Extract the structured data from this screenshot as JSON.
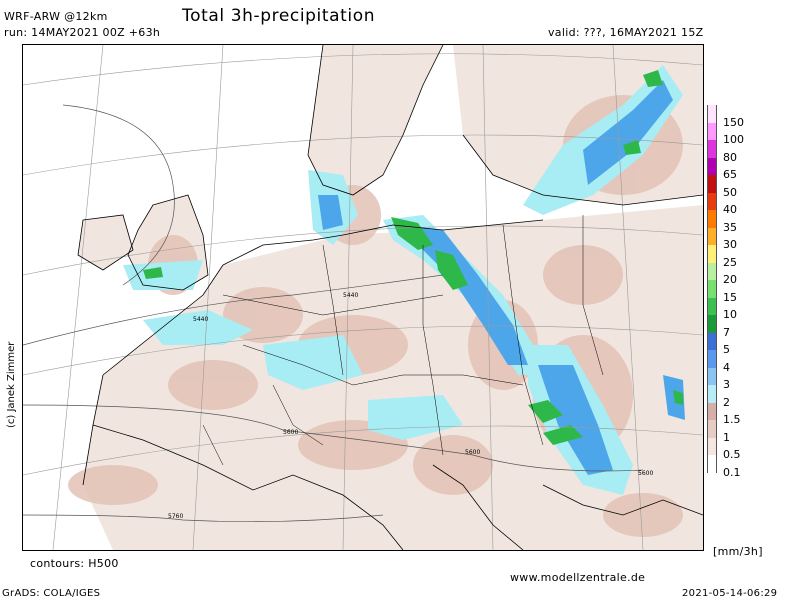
{
  "header": {
    "model": "WRF-ARW @12km",
    "title": "Total 3h-precipitation",
    "run": "run: 14MAY2021 00Z +63h",
    "valid": "valid: ???, 16MAY2021 15Z"
  },
  "map": {
    "contour_labels": [
      "5440",
      "5440",
      "5600",
      "5600",
      "5600",
      "5760"
    ],
    "credit": "(c) Janek Zimmer",
    "contours_note": "contours: H500",
    "colors": {
      "light": "#e8d2c8",
      "mid": "#c9a89a",
      "cyan": "#a8ecf4",
      "blue": "#4ea6ea",
      "green": "#2fb84a",
      "grid": "#9a9a9a",
      "sea": "#ffffff"
    }
  },
  "legend": {
    "unit": "[mm/3h]",
    "levels": [
      "150",
      "100",
      "80",
      "65",
      "50",
      "40",
      "35",
      "30",
      "25",
      "20",
      "15",
      "10",
      "7",
      "5",
      "4",
      "3",
      "2",
      "1.5",
      "1",
      "0.5",
      "0.1"
    ],
    "colors": [
      "#ffe4ff",
      "#ff99ff",
      "#e033e0",
      "#b000b0",
      "#c01010",
      "#e83c10",
      "#ff7a00",
      "#ffae2a",
      "#fff07a",
      "#b8f0a0",
      "#78e070",
      "#3cc050",
      "#1a9a3a",
      "#3a70d8",
      "#5a9aee",
      "#88c4f4",
      "#b8ecf8",
      "#d6b0a8",
      "#e6ccc4",
      "#f4e6e0",
      "#ffffff"
    ]
  },
  "footer": {
    "grads": "GrADS: COLA/IGES",
    "website": "www.modellzentrale.de",
    "timestamp": "2021-05-14-06:29"
  }
}
